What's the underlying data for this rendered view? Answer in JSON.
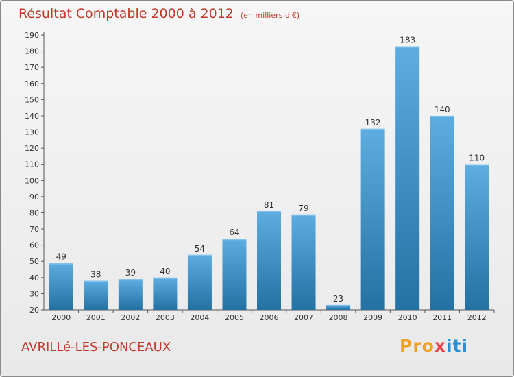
{
  "title": "Résultat Comptable 2000 à 2012",
  "subtitle": "(en milliers d'€)",
  "place": "AVRILLé-LES-PONCEAUX",
  "logo": {
    "p1": "Pro",
    "p2": "x",
    "p3": "iti"
  },
  "colors": {
    "bar_top": "#5dade2",
    "bar_bottom": "#2471a3",
    "title": "#c0392b"
  },
  "chart_data": {
    "type": "bar",
    "title": "Résultat Comptable 2000 à 2012",
    "subtitle": "(en milliers d'€)",
    "categories": [
      "2000",
      "2001",
      "2002",
      "2003",
      "2004",
      "2005",
      "2006",
      "2007",
      "2008",
      "2009",
      "2010",
      "2011",
      "2012"
    ],
    "values": [
      49,
      38,
      39,
      40,
      54,
      64,
      81,
      79,
      23,
      132,
      183,
      140,
      110
    ],
    "ylim": [
      20,
      190
    ],
    "yticks": [
      20,
      30,
      40,
      50,
      60,
      70,
      80,
      90,
      100,
      110,
      120,
      130,
      140,
      150,
      160,
      170,
      180,
      190
    ],
    "grid": false,
    "legend": "none"
  }
}
